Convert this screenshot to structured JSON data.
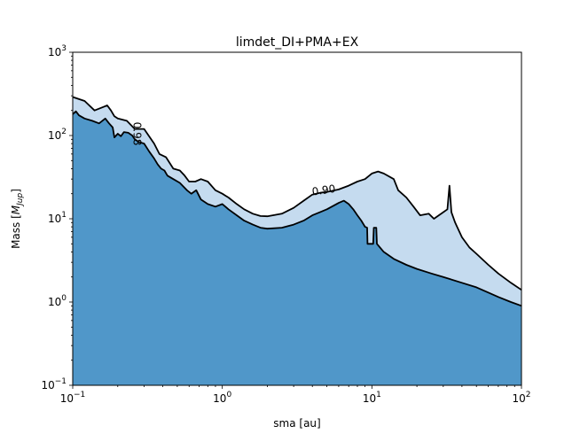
{
  "chart_data": {
    "type": "area",
    "title": "limdet_DI+PMA+EX",
    "xlabel": "sma [au]",
    "ylabel_main": "Mass [",
    "ylabel_symbol": "M",
    "ylabel_sub": "Jup",
    "ylabel_end": "]",
    "xscale": "log",
    "yscale": "log",
    "xlim": [
      0.1,
      100
    ],
    "ylim": [
      0.1,
      1000
    ],
    "x_ticks": [
      {
        "value": 0.1,
        "base": "10",
        "exp": "−1"
      },
      {
        "value": 1,
        "base": "10",
        "exp": "0"
      },
      {
        "value": 10,
        "base": "10",
        "exp": "1"
      },
      {
        "value": 100,
        "base": "10",
        "exp": "2"
      }
    ],
    "y_ticks": [
      {
        "value": 0.1,
        "base": "10",
        "exp": "−1"
      },
      {
        "value": 1,
        "base": "10",
        "exp": "0"
      },
      {
        "value": 10,
        "base": "10",
        "exp": "1"
      },
      {
        "value": 100,
        "base": "10",
        "exp": "2"
      },
      {
        "value": 1000,
        "base": "10",
        "exp": "3"
      }
    ],
    "grid": false,
    "colors": {
      "dark_fill": "#5097c9",
      "light_fill": "#c5dbef",
      "contour": "#000000"
    },
    "contour_labels": [
      {
        "text": "0.90",
        "x": 4.8,
        "y": 20
      },
      {
        "text": "0.98",
        "x": 0.255,
        "y": 105,
        "rotate": 90
      }
    ],
    "series": [
      {
        "level": 0.98,
        "fill": "dark",
        "points": [
          [
            0.1,
            180
          ],
          [
            0.105,
            195
          ],
          [
            0.11,
            175
          ],
          [
            0.12,
            160
          ],
          [
            0.135,
            150
          ],
          [
            0.15,
            140
          ],
          [
            0.165,
            160
          ],
          [
            0.175,
            140
          ],
          [
            0.185,
            125
          ],
          [
            0.19,
            95
          ],
          [
            0.2,
            105
          ],
          [
            0.21,
            98
          ],
          [
            0.22,
            110
          ],
          [
            0.235,
            108
          ],
          [
            0.25,
            100
          ],
          [
            0.26,
            90
          ],
          [
            0.275,
            84
          ],
          [
            0.3,
            80
          ],
          [
            0.325,
            64
          ],
          [
            0.35,
            53
          ],
          [
            0.37,
            45
          ],
          [
            0.39,
            40
          ],
          [
            0.41,
            38
          ],
          [
            0.43,
            33
          ],
          [
            0.47,
            30
          ],
          [
            0.52,
            27
          ],
          [
            0.58,
            22
          ],
          [
            0.62,
            20
          ],
          [
            0.67,
            22
          ],
          [
            0.72,
            17
          ],
          [
            0.8,
            15
          ],
          [
            0.9,
            14
          ],
          [
            1.0,
            15
          ],
          [
            1.1,
            13
          ],
          [
            1.25,
            11
          ],
          [
            1.4,
            9.5
          ],
          [
            1.6,
            8.5
          ],
          [
            1.8,
            7.8
          ],
          [
            2.0,
            7.6
          ],
          [
            2.5,
            7.8
          ],
          [
            3.0,
            8.5
          ],
          [
            3.5,
            9.5
          ],
          [
            4.0,
            11
          ],
          [
            4.5,
            12
          ],
          [
            5.0,
            13
          ],
          [
            6.0,
            15.5
          ],
          [
            6.5,
            16.5
          ],
          [
            7.0,
            15
          ],
          [
            7.5,
            13
          ],
          [
            8.0,
            11
          ],
          [
            8.5,
            9.5
          ],
          [
            9.0,
            8
          ],
          [
            9.3,
            7.8
          ],
          [
            9.35,
            5
          ],
          [
            10.2,
            5
          ],
          [
            10.3,
            7.8
          ],
          [
            10.7,
            7.8
          ],
          [
            10.8,
            5
          ],
          [
            12,
            4
          ],
          [
            14,
            3.3
          ],
          [
            17,
            2.8
          ],
          [
            20,
            2.5
          ],
          [
            25,
            2.2
          ],
          [
            30,
            2.0
          ],
          [
            40,
            1.7
          ],
          [
            50,
            1.5
          ],
          [
            60,
            1.3
          ],
          [
            70,
            1.15
          ],
          [
            85,
            1.0
          ],
          [
            100,
            0.9
          ]
        ]
      },
      {
        "level": 0.9,
        "fill": "light",
        "points": [
          [
            0.1,
            290
          ],
          [
            0.12,
            260
          ],
          [
            0.14,
            200
          ],
          [
            0.16,
            220
          ],
          [
            0.17,
            230
          ],
          [
            0.18,
            200
          ],
          [
            0.19,
            170
          ],
          [
            0.2,
            160
          ],
          [
            0.23,
            150
          ],
          [
            0.26,
            120
          ],
          [
            0.3,
            120
          ],
          [
            0.35,
            80
          ],
          [
            0.38,
            60
          ],
          [
            0.42,
            55
          ],
          [
            0.47,
            40
          ],
          [
            0.52,
            38
          ],
          [
            0.56,
            33
          ],
          [
            0.6,
            28
          ],
          [
            0.66,
            28
          ],
          [
            0.72,
            30
          ],
          [
            0.8,
            28
          ],
          [
            0.9,
            22
          ],
          [
            1.0,
            20
          ],
          [
            1.1,
            18
          ],
          [
            1.25,
            15
          ],
          [
            1.4,
            13
          ],
          [
            1.6,
            11.5
          ],
          [
            1.8,
            10.8
          ],
          [
            2.0,
            10.7
          ],
          [
            2.5,
            11.5
          ],
          [
            3.0,
            13.5
          ],
          [
            3.5,
            16.5
          ],
          [
            4.0,
            19.5
          ],
          [
            4.5,
            20.5
          ],
          [
            5.0,
            21
          ],
          [
            6.0,
            22.5
          ],
          [
            7.0,
            25
          ],
          [
            8.0,
            28
          ],
          [
            9.0,
            30
          ],
          [
            10.0,
            35
          ],
          [
            11.0,
            37
          ],
          [
            12.0,
            35
          ],
          [
            14.0,
            30
          ],
          [
            15.0,
            22
          ],
          [
            17.0,
            18
          ],
          [
            19.0,
            14
          ],
          [
            21.0,
            11
          ],
          [
            24.0,
            11.5
          ],
          [
            26.0,
            10
          ],
          [
            28.0,
            11
          ],
          [
            30.0,
            12
          ],
          [
            32.0,
            13
          ],
          [
            33.0,
            25
          ],
          [
            34.0,
            12
          ],
          [
            36.0,
            9
          ],
          [
            40.0,
            6
          ],
          [
            45.0,
            4.5
          ],
          [
            50.0,
            3.8
          ],
          [
            60.0,
            2.8
          ],
          [
            70.0,
            2.2
          ],
          [
            85.0,
            1.7
          ],
          [
            100.0,
            1.4
          ]
        ]
      }
    ]
  }
}
